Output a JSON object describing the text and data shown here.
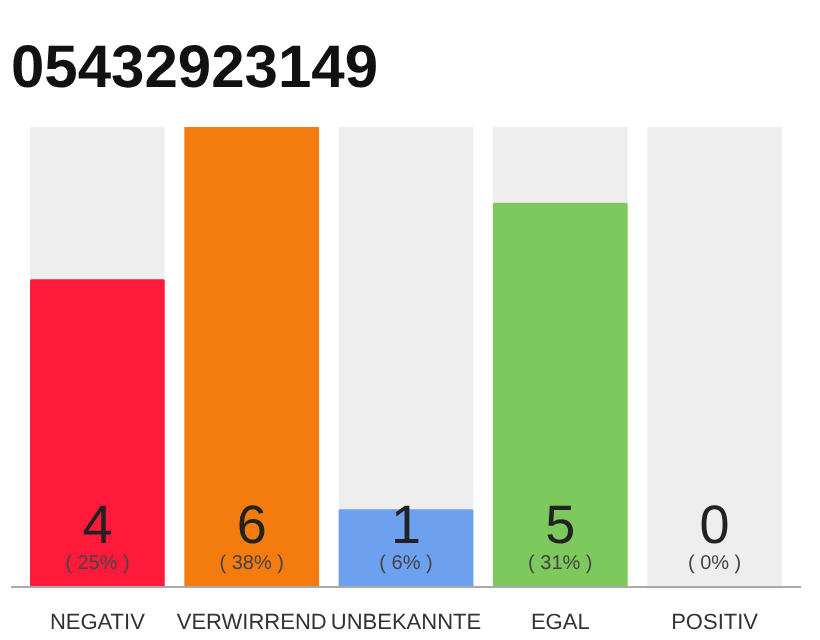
{
  "chart_data": {
    "type": "bar",
    "title": "05432923149",
    "categories": [
      "NEGATIV",
      "VERWIRREND",
      "UNBEKANNTE",
      "EGAL",
      "POSITIV"
    ],
    "values": [
      4,
      6,
      1,
      5,
      0
    ],
    "colors": [
      "#ff1a3c",
      "#f47c0e",
      "#6ea0f0",
      "#7dc95e",
      "#cccccc"
    ],
    "tick_labels": "x",
    "data_labels": true,
    "annotations": [
      "( 25% )",
      "( 38% )",
      "( 6% )",
      "( 31% )",
      "( 0% )"
    ]
  }
}
